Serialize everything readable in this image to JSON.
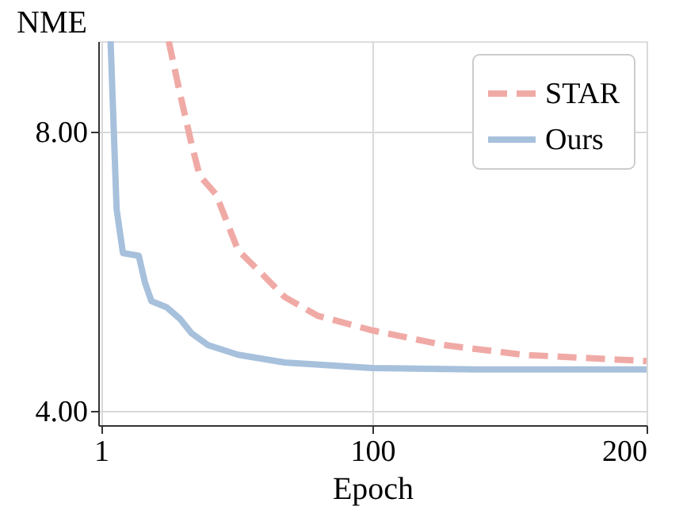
{
  "chart_data": {
    "type": "line",
    "xlabel": "Epoch",
    "ylabel": "NME",
    "xlim": [
      0,
      200
    ],
    "ylim": [
      3.79,
      9.3
    ],
    "xticks": [
      1,
      100,
      200
    ],
    "yticks": [
      {
        "value": 4,
        "label": "4.00"
      },
      {
        "value": 8,
        "label": "8.00"
      }
    ],
    "grid": true,
    "legend": "top right",
    "series": [
      {
        "name": "STAR",
        "color": "#f0aaa6",
        "line_style": "dashed",
        "x": [
          25.7,
          29.7,
          34,
          37,
          43,
          51,
          60,
          68,
          80,
          100,
          126,
          155,
          200
        ],
        "values": [
          9.3,
          8.57,
          7.83,
          7.37,
          7.1,
          6.3,
          5.95,
          5.63,
          5.36,
          5.15,
          4.94,
          4.8,
          4.71
        ]
      },
      {
        "name": "Ours",
        "color": "#a7c1dc",
        "line_style": "solid",
        "x": [
          4.5,
          6.7,
          9,
          14.8,
          17,
          19.4,
          25,
          29.7,
          34,
          40,
          51,
          68,
          100,
          138,
          200
        ],
        "values": [
          9.3,
          6.89,
          6.26,
          6.22,
          5.84,
          5.57,
          5.48,
          5.32,
          5.11,
          4.94,
          4.8,
          4.69,
          4.61,
          4.59,
          4.59
        ]
      }
    ]
  }
}
